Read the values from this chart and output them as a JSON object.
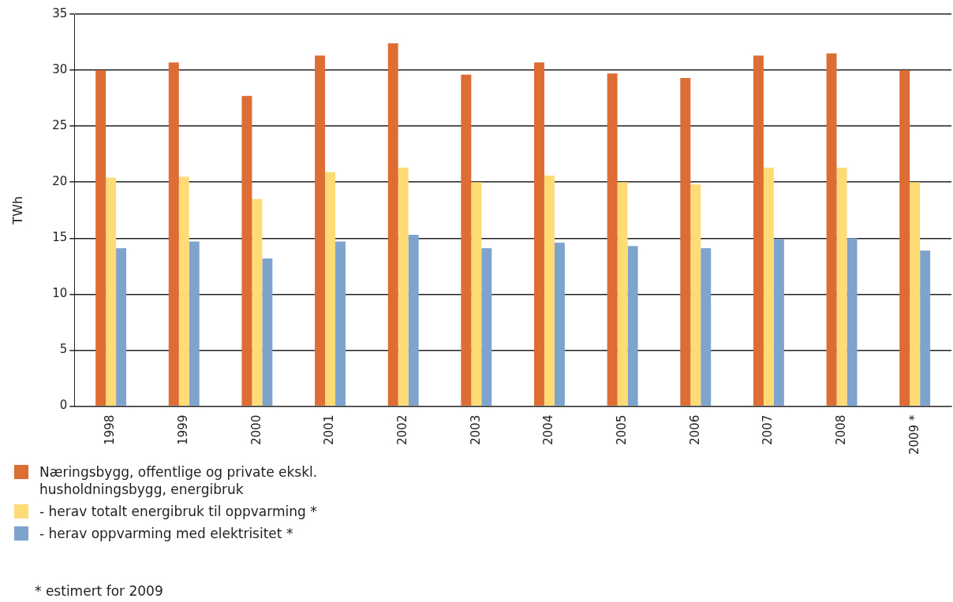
{
  "chart_data": {
    "type": "bar",
    "ylabel": "TWh",
    "categories": [
      "1998",
      "1999",
      "2000",
      "2001",
      "2002",
      "2003",
      "2004",
      "2005",
      "2006",
      "2007",
      "2008",
      "2009 *"
    ],
    "series": [
      {
        "name": "Næringsbygg, offentlige og private ekskl. husholdningsbygg, energibruk",
        "color": "#dd6d33",
        "values": [
          30.0,
          30.7,
          27.7,
          31.3,
          32.4,
          29.6,
          30.7,
          29.7,
          29.3,
          31.3,
          31.5,
          30.0
        ]
      },
      {
        "name": "- herav totalt energibruk til oppvarming *",
        "color": "#ffdb76",
        "values": [
          20.4,
          20.5,
          18.5,
          20.9,
          21.3,
          20.0,
          20.6,
          20.0,
          19.8,
          21.3,
          21.3,
          20.0
        ]
      },
      {
        "name": "- herav oppvarming med elektrisitet *",
        "color": "#7ea3cc",
        "values": [
          14.1,
          14.7,
          13.2,
          14.7,
          15.3,
          14.1,
          14.6,
          14.3,
          14.1,
          14.9,
          15.0,
          13.9
        ]
      }
    ],
    "ylim": [
      0,
      35
    ],
    "yticks": [
      0,
      5,
      10,
      15,
      20,
      25,
      30,
      35
    ],
    "grid": "y",
    "legend": "bottom left",
    "annotations": [
      "* estimert for 2009"
    ]
  }
}
